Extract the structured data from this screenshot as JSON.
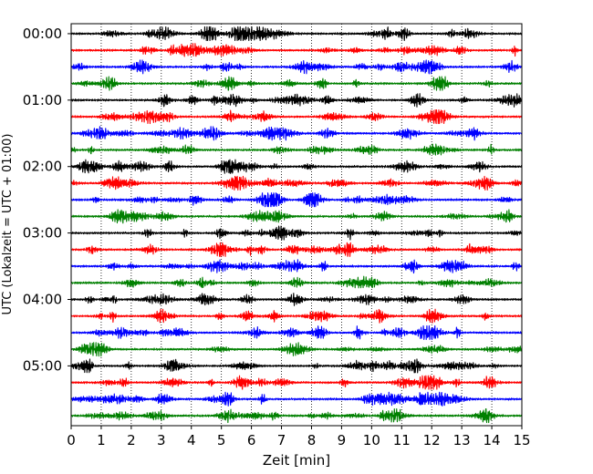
{
  "chart_data": {
    "type": "line",
    "title": "",
    "xlabel": "Zeit  [min]",
    "ylabel": "UTC (Lokalzeit = UTC + 01:00)",
    "xlim": [
      0,
      15
    ],
    "x_ticks": [
      0,
      1,
      2,
      3,
      4,
      5,
      6,
      7,
      8,
      9,
      10,
      11,
      12,
      13,
      14,
      15
    ],
    "x_tick_labels": [
      "0",
      "1",
      "2",
      "3",
      "4",
      "5",
      "6",
      "7",
      "8",
      "9",
      "10",
      "11",
      "12",
      "13",
      "14",
      "15"
    ],
    "y_ticks_minutes": [
      0,
      60,
      120,
      180,
      240,
      300
    ],
    "y_tick_labels": [
      "00:00",
      "01:00",
      "02:00",
      "03:00",
      "04:00",
      "05:00"
    ],
    "ylim_minutes": [
      -9,
      354
    ],
    "y_inverted": true,
    "grid": "x-dotted",
    "legend": "none",
    "trace_interval_minutes": 15,
    "trace_count": 24,
    "trace_colors": [
      "#000000",
      "#ff0000",
      "#0000ff",
      "#008000"
    ],
    "traces": [
      {
        "start": "00:00"
      },
      {
        "start": "00:15"
      },
      {
        "start": "00:30"
      },
      {
        "start": "00:45"
      },
      {
        "start": "01:00"
      },
      {
        "start": "01:15"
      },
      {
        "start": "01:30"
      },
      {
        "start": "01:45"
      },
      {
        "start": "02:00"
      },
      {
        "start": "02:15"
      },
      {
        "start": "02:30"
      },
      {
        "start": "02:45"
      },
      {
        "start": "03:00"
      },
      {
        "start": "03:15"
      },
      {
        "start": "03:30"
      },
      {
        "start": "03:45"
      },
      {
        "start": "04:00"
      },
      {
        "start": "04:15"
      },
      {
        "start": "04:30"
      },
      {
        "start": "04:45"
      },
      {
        "start": "05:00"
      },
      {
        "start": "05:15"
      },
      {
        "start": "05:30"
      },
      {
        "start": "05:45"
      }
    ]
  }
}
